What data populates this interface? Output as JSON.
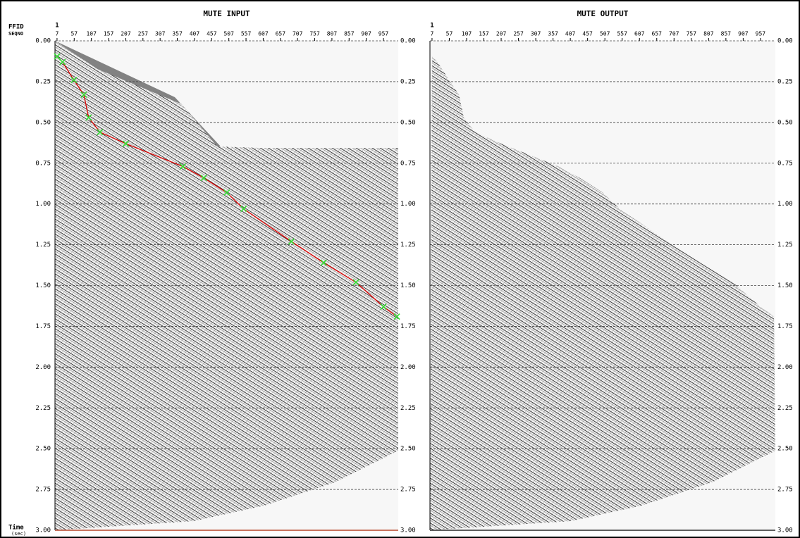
{
  "chart_data": [
    {
      "type": "line",
      "title": "MUTE INPUT",
      "row_labels": [
        "FFID",
        "SEQNO"
      ],
      "ffid": 1,
      "y_label": "Time",
      "y_unit": "(sec)",
      "xlim": [
        1,
        1000
      ],
      "xticks": [
        7,
        57,
        107,
        157,
        207,
        257,
        307,
        357,
        407,
        457,
        507,
        557,
        607,
        657,
        707,
        757,
        807,
        857,
        907,
        957
      ],
      "ylim": [
        0,
        3
      ],
      "yticks": [
        {
          "value": 0,
          "label": "0.00"
        },
        {
          "value": 0.25,
          "label": "0.25"
        },
        {
          "value": 0.5,
          "label": "0.50"
        },
        {
          "value": 0.75,
          "label": "0.75"
        },
        {
          "value": 1,
          "label": "1.00"
        },
        {
          "value": 1.25,
          "label": "1.25"
        },
        {
          "value": 1.5,
          "label": "1.50"
        },
        {
          "value": 1.75,
          "label": "1.75"
        },
        {
          "value": 2,
          "label": "2.00"
        },
        {
          "value": 2.25,
          "label": "2.25"
        },
        {
          "value": 2.5,
          "label": "2.50"
        },
        {
          "value": 2.75,
          "label": "2.75"
        },
        {
          "value": 3,
          "label": "3.00"
        }
      ],
      "grid": true,
      "series": [
        {
          "color": "#dd0000",
          "marker_color": "#33dd33",
          "x": [
            7,
            23,
            56,
            85,
            99,
            132,
            207,
            373,
            434,
            501,
            550,
            689,
            783,
            877,
            957,
            996
          ],
          "values": [
            0.095,
            0.13,
            0.24,
            0.33,
            0.47,
            0.56,
            0.63,
            0.77,
            0.84,
            0.93,
            1.03,
            1.23,
            1.36,
            1.48,
            1.63,
            1.69
          ]
        }
      ]
    },
    {
      "type": "seismic",
      "title": "MUTE OUTPUT",
      "ffid": 1,
      "xlim": [
        1,
        1000
      ],
      "xticks": [
        7,
        57,
        107,
        157,
        207,
        257,
        307,
        357,
        407,
        457,
        507,
        557,
        607,
        657,
        707,
        757,
        807,
        857,
        907,
        957
      ],
      "ylim": [
        0,
        3
      ],
      "yticks": [
        {
          "value": 0,
          "label": "0.00"
        },
        {
          "value": 0.25,
          "label": "0.25"
        },
        {
          "value": 0.5,
          "label": "0.50"
        },
        {
          "value": 0.75,
          "label": "0.75"
        },
        {
          "value": 1,
          "label": "1.00"
        },
        {
          "value": 1.25,
          "label": "1.25"
        },
        {
          "value": 1.5,
          "label": "1.50"
        },
        {
          "value": 1.75,
          "label": "1.75"
        },
        {
          "value": 2,
          "label": "2.00"
        },
        {
          "value": 2.25,
          "label": "2.25"
        },
        {
          "value": 2.5,
          "label": "2.50"
        },
        {
          "value": 2.75,
          "label": "2.75"
        },
        {
          "value": 3,
          "label": "3.00"
        }
      ],
      "grid": true
    }
  ]
}
